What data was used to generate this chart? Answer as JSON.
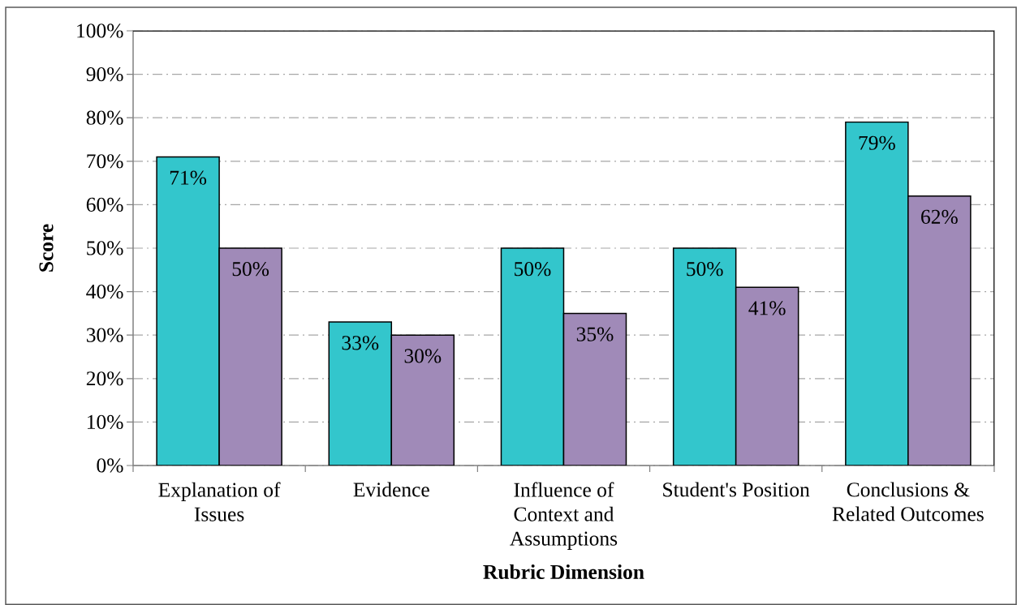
{
  "chart_data": {
    "type": "bar",
    "xlabel": "Rubric Dimension",
    "ylabel": "Score",
    "categories": [
      "Explanation of Issues",
      "Evidence",
      "Influence of Context and Assumptions",
      "Student's Position",
      "Conclusions & Related Outcomes"
    ],
    "series": [
      {
        "color": "#33c6cc",
        "values": [
          71,
          33,
          50,
          50,
          79
        ],
        "value_labels": [
          "71%",
          "33%",
          "50%",
          "50%",
          "79%"
        ]
      },
      {
        "color": "#a08ab8",
        "values": [
          50,
          30,
          35,
          41,
          62
        ],
        "value_labels": [
          "50%",
          "30%",
          "35%",
          "41%",
          "62%"
        ]
      }
    ],
    "ylim": [
      0,
      100
    ],
    "yticks": [
      {
        "value": 0,
        "label": "0%"
      },
      {
        "value": 10,
        "label": "10%"
      },
      {
        "value": 20,
        "label": "20%"
      },
      {
        "value": 30,
        "label": "30%"
      },
      {
        "value": 40,
        "label": "40%"
      },
      {
        "value": 50,
        "label": "50%"
      },
      {
        "value": 60,
        "label": "60%"
      },
      {
        "value": 70,
        "label": "70%"
      },
      {
        "value": 80,
        "label": "80%"
      },
      {
        "value": 90,
        "label": "90%"
      },
      {
        "value": 100,
        "label": "100%"
      }
    ],
    "grid": "y"
  }
}
